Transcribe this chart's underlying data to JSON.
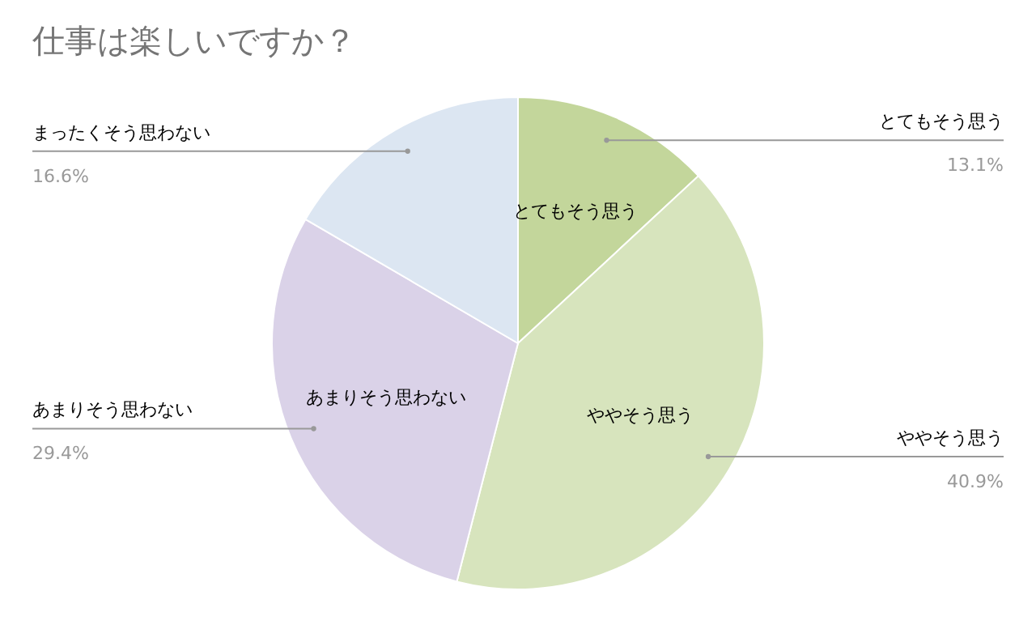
{
  "chart_data": {
    "type": "pie",
    "title": "仕事は楽しいですか？",
    "categories": [
      "とてもそう思う",
      "ややそう思う",
      "あまりそう思わない",
      "まったくそう思わない"
    ],
    "values": [
      13.1,
      40.9,
      29.4,
      16.6
    ],
    "colors": [
      "#c3d69b",
      "#d7e4bd",
      "#dad2e8",
      "#dce6f2"
    ],
    "value_labels": [
      "13.1%",
      "40.9%",
      "29.4%",
      "16.6%"
    ],
    "legend": false
  }
}
